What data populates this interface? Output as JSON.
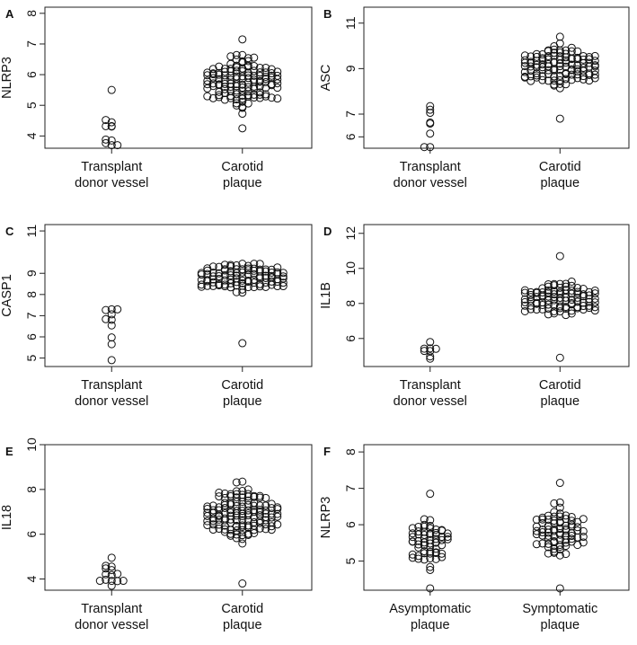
{
  "figure": {
    "description_free": true
  },
  "chart_data": [
    {
      "type": "scatter",
      "panel_label": "A",
      "ylabel": "NLRP3",
      "ylim": [
        3.6,
        8.2
      ],
      "yticks": [
        4,
        5,
        6,
        7,
        8
      ],
      "categories": [
        [
          "Transplant",
          "donor vessel"
        ],
        [
          "Carotid",
          "plaque"
        ]
      ],
      "groups": [
        {
          "name": "Transplant donor vessel",
          "n": 11,
          "min": 3.7,
          "max": 5.5,
          "center": 4.0,
          "spread": 0.6,
          "width": 1
        },
        {
          "name": "Carotid plaque",
          "n": 150,
          "min": 4.25,
          "max": 7.15,
          "center": 5.75,
          "spread": 0.55,
          "width": 6
        }
      ]
    },
    {
      "type": "scatter",
      "panel_label": "B",
      "ylabel": "ASC",
      "ylim": [
        5.5,
        11.7
      ],
      "yticks": [
        6,
        7,
        9,
        11
      ],
      "categories": [
        [
          "Transplant",
          "donor vessel"
        ],
        [
          "Carotid",
          "plaque"
        ]
      ],
      "groups": [
        {
          "name": "Transplant donor vessel",
          "n": 8,
          "min": 5.55,
          "max": 7.35,
          "center": 6.5,
          "spread": 0.6,
          "width": 1
        },
        {
          "name": "Carotid plaque",
          "n": 150,
          "min": 6.8,
          "max": 10.4,
          "center": 9.15,
          "spread": 0.55,
          "width": 6
        }
      ]
    },
    {
      "type": "scatter",
      "panel_label": "C",
      "ylabel": "CASP1",
      "ylim": [
        4.6,
        11.3
      ],
      "yticks": [
        5,
        6,
        7,
        8,
        9,
        11
      ],
      "categories": [
        [
          "Transplant",
          "donor vessel"
        ],
        [
          "Carotid",
          "plaque"
        ]
      ],
      "groups": [
        {
          "name": "Transplant donor vessel",
          "n": 10,
          "min": 4.9,
          "max": 7.3,
          "center": 6.3,
          "spread": 0.7,
          "width": 1
        },
        {
          "name": "Carotid plaque",
          "n": 150,
          "min": 5.7,
          "max": 9.45,
          "center": 8.8,
          "spread": 0.4,
          "width": 7
        }
      ]
    },
    {
      "type": "scatter",
      "panel_label": "D",
      "ylabel": "IL1B",
      "ylim": [
        4.4,
        12.5
      ],
      "yticks": [
        6,
        8,
        10,
        12
      ],
      "categories": [
        [
          "Transplant",
          "donor vessel"
        ],
        [
          "Carotid",
          "plaque"
        ]
      ],
      "groups": [
        {
          "name": "Transplant donor vessel",
          "n": 8,
          "min": 4.85,
          "max": 5.8,
          "center": 5.4,
          "spread": 0.4,
          "width": 1
        },
        {
          "name": "Carotid plaque",
          "n": 150,
          "min": 4.9,
          "max": 10.7,
          "center": 8.2,
          "spread": 0.6,
          "width": 6
        }
      ]
    },
    {
      "type": "scatter",
      "panel_label": "E",
      "ylabel": "IL18",
      "ylim": [
        3.5,
        10
      ],
      "yticks": [
        4,
        6,
        8,
        10
      ],
      "categories": [
        [
          "Transplant",
          "donor vessel"
        ],
        [
          "Carotid",
          "plaque"
        ]
      ],
      "groups": [
        {
          "name": "Transplant donor vessel",
          "n": 14,
          "min": 3.7,
          "max": 4.95,
          "center": 4.1,
          "spread": 0.35,
          "width": 2
        },
        {
          "name": "Carotid plaque",
          "n": 150,
          "min": 3.8,
          "max": 8.35,
          "center": 6.9,
          "spread": 0.8,
          "width": 6
        }
      ]
    },
    {
      "type": "scatter",
      "panel_label": "F",
      "ylabel": "NLRP3",
      "ylim": [
        4.2,
        8.2
      ],
      "yticks": [
        5,
        6,
        7,
        8
      ],
      "categories": [
        [
          "Asymptomatic",
          "plaque"
        ],
        [
          "Symptomatic",
          "plaque"
        ]
      ],
      "groups": [
        {
          "name": "Asymptomatic plaque",
          "n": 65,
          "min": 4.25,
          "max": 6.85,
          "center": 5.5,
          "spread": 0.45,
          "width": 3
        },
        {
          "name": "Symptomatic plaque",
          "n": 85,
          "min": 4.25,
          "max": 7.15,
          "center": 5.8,
          "spread": 0.5,
          "width": 4
        }
      ]
    }
  ]
}
